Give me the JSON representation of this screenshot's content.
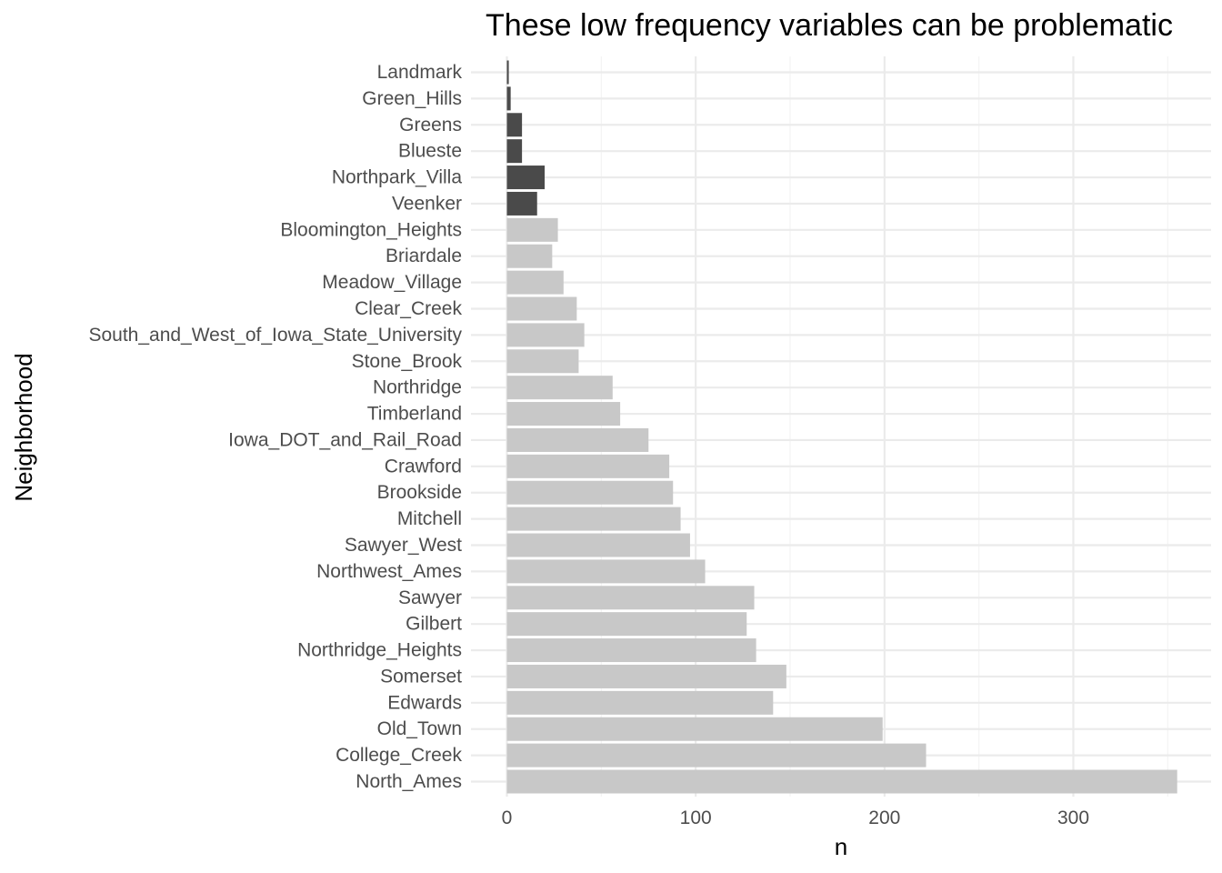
{
  "chart_data": {
    "type": "bar",
    "orientation": "horizontal",
    "title": "These low frequency variables can be problematic",
    "xlabel": "n",
    "ylabel": "Neighborhood",
    "xlim": [
      0,
      355
    ],
    "x_ticks": [
      0,
      100,
      200,
      300
    ],
    "grid": true,
    "legend": "none",
    "colors": {
      "highlight": "#4a4a4a",
      "normal": "#c8c8c8"
    },
    "categories": [
      "Landmark",
      "Green_Hills",
      "Greens",
      "Blueste",
      "Northpark_Villa",
      "Veenker",
      "Bloomington_Heights",
      "Briardale",
      "Meadow_Village",
      "Clear_Creek",
      "South_and_West_of_Iowa_State_University",
      "Stone_Brook",
      "Northridge",
      "Timberland",
      "Iowa_DOT_and_Rail_Road",
      "Crawford",
      "Brookside",
      "Mitchell",
      "Sawyer_West",
      "Northwest_Ames",
      "Sawyer",
      "Gilbert",
      "Northridge_Heights",
      "Somerset",
      "Edwards",
      "Old_Town",
      "College_Creek",
      "North_Ames"
    ],
    "values": [
      1,
      2,
      8,
      8,
      20,
      16,
      27,
      24,
      30,
      37,
      41,
      38,
      56,
      60,
      75,
      86,
      88,
      92,
      97,
      105,
      131,
      127,
      132,
      148,
      141,
      199,
      222,
      355
    ],
    "highlighted": [
      true,
      true,
      true,
      true,
      true,
      true,
      false,
      false,
      false,
      false,
      false,
      false,
      false,
      false,
      false,
      false,
      false,
      false,
      false,
      false,
      false,
      false,
      false,
      false,
      false,
      false,
      false,
      false
    ]
  }
}
